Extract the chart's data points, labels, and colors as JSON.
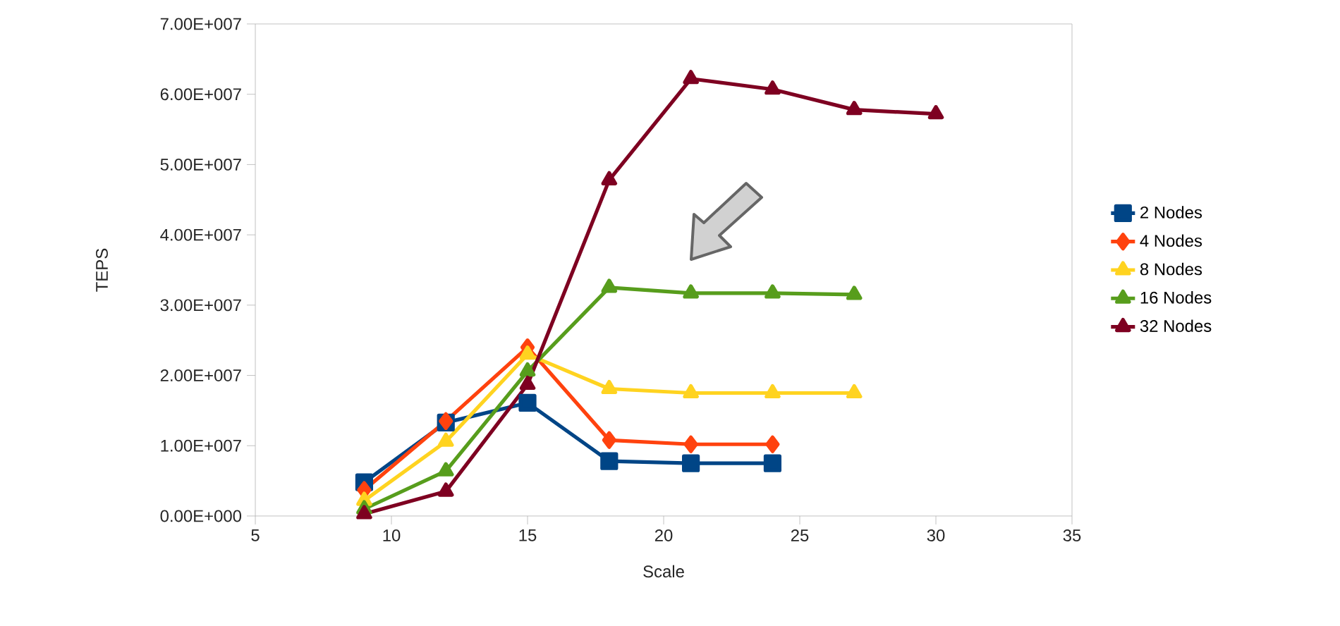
{
  "chart_data": {
    "type": "line",
    "xlabel": "Scale",
    "ylabel": "TEPS",
    "xlim": [
      5,
      35
    ],
    "xticks": [
      5,
      10,
      15,
      20,
      25,
      30,
      35
    ],
    "ylim": [
      0,
      70000000
    ],
    "yticks": [
      {
        "value": 0,
        "label": "0.00E+000"
      },
      {
        "value": 10000000,
        "label": "1.00E+007"
      },
      {
        "value": 20000000,
        "label": "2.00E+007"
      },
      {
        "value": 30000000,
        "label": "3.00E+007"
      },
      {
        "value": 40000000,
        "label": "4.00E+007"
      },
      {
        "value": 50000000,
        "label": "5.00E+007"
      },
      {
        "value": 60000000,
        "label": "6.00E+007"
      },
      {
        "value": 70000000,
        "label": "7.00E+007"
      }
    ],
    "legend": "right",
    "grid": false,
    "line_style": "solid",
    "series": [
      {
        "name": "2 Nodes",
        "color": "#004586",
        "marker": "square",
        "x": [
          9,
          12,
          15,
          18,
          21,
          24
        ],
        "values": [
          4800000,
          13300000,
          16100000,
          7800000,
          7500000,
          7500000
        ]
      },
      {
        "name": "4 Nodes",
        "color": "#ff420e",
        "marker": "diamond",
        "x": [
          9,
          12,
          15,
          18,
          21,
          24
        ],
        "values": [
          3700000,
          13500000,
          24000000,
          10800000,
          10200000,
          10200000
        ]
      },
      {
        "name": "8 Nodes",
        "color": "#ffd320",
        "marker": "triangle",
        "x": [
          9,
          12,
          15,
          18,
          21,
          24,
          27
        ],
        "values": [
          2200000,
          10600000,
          23000000,
          18100000,
          17500000,
          17500000,
          17500000
        ]
      },
      {
        "name": "16 Nodes",
        "color": "#579d1c",
        "marker": "triangle",
        "x": [
          9,
          12,
          15,
          18,
          21,
          24,
          27
        ],
        "values": [
          1000000,
          6400000,
          20600000,
          32500000,
          31700000,
          31700000,
          31500000
        ]
      },
      {
        "name": "32 Nodes",
        "color": "#7e0021",
        "marker": "triangle",
        "x": [
          9,
          12,
          15,
          18,
          21,
          24,
          27,
          30
        ],
        "values": [
          300000,
          3500000,
          18700000,
          47800000,
          62200000,
          60700000,
          57800000,
          57200000
        ]
      }
    ]
  }
}
